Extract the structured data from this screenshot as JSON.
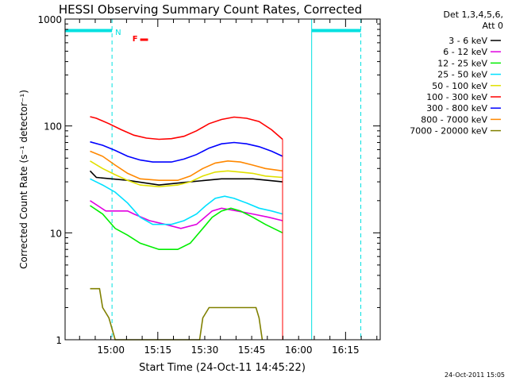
{
  "chart_data": {
    "type": "line",
    "title": "HESSI Observing Summary Count Rates, Corrected",
    "xlabel": "Start Time (24-Oct-11 14:45:22)",
    "ylabel": "Corrected Count Rate (s⁻¹ detector⁻¹)",
    "yscale": "log",
    "ylim": [
      1,
      1000
    ],
    "xlim_minutes_after_start": [
      0,
      100.7
    ],
    "x_tick_labels": [
      "15:00",
      "15:15",
      "15:30",
      "15:45",
      "16:00",
      "16:15"
    ],
    "x_tick_minutes": [
      14.63,
      29.63,
      44.63,
      59.63,
      74.63,
      89.63
    ],
    "y_tick_labels": [
      "1",
      "10",
      "100",
      "1000"
    ],
    "y_tick_values": [
      1,
      10,
      100,
      1000
    ],
    "legend_header": [
      "Det 1,3,4,5,6,",
      "Att 0"
    ],
    "timestamp": "24-Oct-2011 15:05",
    "flags": [
      {
        "label": "N",
        "color": "#00e0e0"
      },
      {
        "label": "F",
        "color": "#ff0000"
      }
    ],
    "night_bars": [
      {
        "start": 0,
        "end": 15.0,
        "level": 780
      },
      {
        "start": 78.8,
        "end": 94.5,
        "level": 780
      }
    ],
    "cyan_solid_lines": [
      0,
      78.8
    ],
    "cyan_dashed_lines": [
      15.0,
      94.5
    ],
    "series": [
      {
        "name": "3 - 6 keV",
        "color": "#000000",
        "points": [
          [
            8,
            38
          ],
          [
            10,
            33
          ],
          [
            20,
            31
          ],
          [
            30,
            28
          ],
          [
            40,
            30
          ],
          [
            50,
            32
          ],
          [
            60,
            32
          ],
          [
            69.5,
            30
          ]
        ]
      },
      {
        "name": "6 - 12 keV",
        "color": "#e000e0",
        "points": [
          [
            8,
            20
          ],
          [
            13,
            16
          ],
          [
            20,
            16
          ],
          [
            22,
            15
          ],
          [
            27,
            13
          ],
          [
            32,
            12
          ],
          [
            37,
            11
          ],
          [
            42,
            12
          ],
          [
            47,
            16
          ],
          [
            50,
            17
          ],
          [
            55,
            16
          ],
          [
            60,
            15
          ],
          [
            65,
            14
          ],
          [
            69.5,
            13
          ]
        ]
      },
      {
        "name": "12 - 25 keV",
        "color": "#00ee00",
        "points": [
          [
            8,
            18
          ],
          [
            12,
            15
          ],
          [
            16,
            11
          ],
          [
            20,
            9.5
          ],
          [
            24,
            8
          ],
          [
            30,
            7
          ],
          [
            36,
            7
          ],
          [
            40,
            8
          ],
          [
            44,
            11
          ],
          [
            47,
            14
          ],
          [
            50,
            16
          ],
          [
            53,
            17
          ],
          [
            56,
            16
          ],
          [
            60,
            14
          ],
          [
            64,
            12
          ],
          [
            69.5,
            10
          ]
        ]
      },
      {
        "name": "25 - 50 keV",
        "color": "#00e0ff",
        "points": [
          [
            8,
            32
          ],
          [
            12,
            28
          ],
          [
            16,
            24
          ],
          [
            20,
            19
          ],
          [
            24,
            14
          ],
          [
            28,
            12
          ],
          [
            34,
            12
          ],
          [
            38,
            13
          ],
          [
            42,
            15
          ],
          [
            45,
            18
          ],
          [
            48,
            21
          ],
          [
            51,
            22
          ],
          [
            54,
            21
          ],
          [
            58,
            19
          ],
          [
            62,
            17
          ],
          [
            66,
            16
          ],
          [
            69.5,
            15
          ]
        ]
      },
      {
        "name": "50 - 100 keV",
        "color": "#e0e000",
        "points": [
          [
            8,
            47
          ],
          [
            12,
            40
          ],
          [
            16,
            35
          ],
          [
            20,
            31
          ],
          [
            24,
            28
          ],
          [
            30,
            27
          ],
          [
            36,
            28
          ],
          [
            40,
            30
          ],
          [
            44,
            34
          ],
          [
            48,
            37
          ],
          [
            52,
            38
          ],
          [
            56,
            37
          ],
          [
            60,
            36
          ],
          [
            64,
            34
          ],
          [
            69.5,
            33
          ]
        ]
      },
      {
        "name": "100 - 300 keV",
        "color": "#ff0000",
        "points": [
          [
            8,
            122
          ],
          [
            10,
            118
          ],
          [
            14,
            105
          ],
          [
            18,
            92
          ],
          [
            22,
            82
          ],
          [
            26,
            77
          ],
          [
            30,
            75
          ],
          [
            34,
            76
          ],
          [
            38,
            80
          ],
          [
            42,
            90
          ],
          [
            46,
            105
          ],
          [
            50,
            115
          ],
          [
            54,
            121
          ],
          [
            58,
            118
          ],
          [
            62,
            110
          ],
          [
            66,
            92
          ],
          [
            69.5,
            75
          ]
        ]
      },
      {
        "name": "300 - 800 keV",
        "color": "#0000ff",
        "points": [
          [
            8,
            71
          ],
          [
            12,
            66
          ],
          [
            16,
            59
          ],
          [
            20,
            52
          ],
          [
            24,
            48
          ],
          [
            28,
            46
          ],
          [
            34,
            46
          ],
          [
            38,
            49
          ],
          [
            42,
            54
          ],
          [
            46,
            62
          ],
          [
            50,
            68
          ],
          [
            54,
            70
          ],
          [
            58,
            68
          ],
          [
            62,
            64
          ],
          [
            66,
            58
          ],
          [
            69.5,
            52
          ]
        ]
      },
      {
        "name": "800 - 7000 keV",
        "color": "#ff8800",
        "points": [
          [
            8,
            58
          ],
          [
            12,
            52
          ],
          [
            16,
            43
          ],
          [
            20,
            36
          ],
          [
            24,
            32
          ],
          [
            30,
            31
          ],
          [
            36,
            31
          ],
          [
            40,
            34
          ],
          [
            44,
            40
          ],
          [
            48,
            45
          ],
          [
            52,
            47
          ],
          [
            56,
            46
          ],
          [
            60,
            43
          ],
          [
            64,
            40
          ],
          [
            69.5,
            38
          ]
        ]
      },
      {
        "name": "7000 - 20000 keV",
        "color": "#808000",
        "points": [
          [
            8,
            3
          ],
          [
            11,
            3
          ],
          [
            12,
            2
          ],
          [
            14,
            1.6
          ],
          [
            16,
            1
          ],
          [
            43,
            1
          ],
          [
            44,
            1.6
          ],
          [
            46,
            2
          ],
          [
            52,
            2
          ],
          [
            56,
            2
          ],
          [
            61,
            2
          ],
          [
            62,
            1.6
          ],
          [
            63,
            1
          ]
        ]
      }
    ]
  }
}
